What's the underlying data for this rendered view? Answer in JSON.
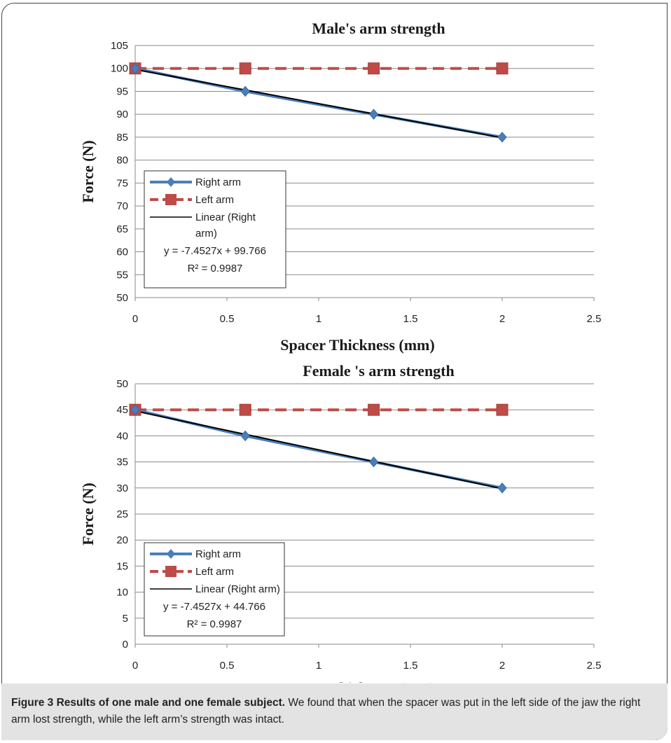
{
  "chart_data": [
    {
      "type": "line",
      "title": "Male's arm strength",
      "xlabel": "Spacer Thickness (mm)",
      "ylabel": "Force (N)",
      "xlim": [
        0,
        2.5
      ],
      "ylim": [
        50,
        105
      ],
      "xticks": [
        "0",
        "0.5",
        "1",
        "1.5",
        "2",
        "2.5"
      ],
      "yticks": [
        "50",
        "55",
        "60",
        "65",
        "70",
        "75",
        "80",
        "85",
        "90",
        "95",
        "100",
        "105"
      ],
      "grid": "horizontal",
      "legend_position": "bottom-left",
      "series": [
        {
          "name": "Right arm",
          "x": [
            0,
            0.6,
            1.3,
            2
          ],
          "values": [
            100,
            95,
            90,
            85
          ],
          "color": "#4a7ebb",
          "marker": "diamond"
        },
        {
          "name": "Left arm",
          "x": [
            0,
            0.6,
            1.3,
            2
          ],
          "values": [
            100,
            100,
            100,
            100
          ],
          "color": "#be4b48",
          "marker": "square"
        }
      ],
      "trendline": {
        "name_lines": [
          "Linear (Right",
          "arm)"
        ],
        "slope": -7.4527,
        "intercept": 99.766,
        "x_range": [
          0,
          2
        ],
        "color": "#000000"
      },
      "equation": "y = -7.4527x + 99.766",
      "r2": "R² = 0.9987"
    },
    {
      "type": "line",
      "title": "Female 's arm  strength",
      "xlabel": "Spacer Thickness (mm)",
      "ylabel": "Force (N)",
      "xlim": [
        0,
        2.5
      ],
      "ylim": [
        0,
        50
      ],
      "xticks": [
        "0",
        "0.5",
        "1",
        "1.5",
        "2",
        "2.5"
      ],
      "yticks": [
        "0",
        "5",
        "10",
        "15",
        "20",
        "25",
        "30",
        "35",
        "40",
        "45",
        "50"
      ],
      "grid": "horizontal",
      "legend_position": "bottom-left",
      "series": [
        {
          "name": "Right arm",
          "x": [
            0,
            0.6,
            1.3,
            2
          ],
          "values": [
            45,
            40,
            35,
            30
          ],
          "color": "#4a7ebb",
          "marker": "diamond"
        },
        {
          "name": "Left arm",
          "x": [
            0,
            0.6,
            1.3,
            2
          ],
          "values": [
            45,
            45,
            45,
            45
          ],
          "color": "#be4b48",
          "marker": "square"
        }
      ],
      "trendline": {
        "name_lines": [
          "Linear (Right arm)"
        ],
        "slope": -7.4527,
        "intercept": 44.766,
        "x_range": [
          0,
          2
        ],
        "color": "#000000"
      },
      "equation": "y = -7.4527x + 44.766",
      "r2": "R² = 0.9987"
    }
  ],
  "caption": {
    "label": "Figure 3 Results of one male and one female subject.",
    "text": " We found that when the spacer was put in the left side of the jaw the right arm lost strength, while the left arm’s strength was intact."
  }
}
